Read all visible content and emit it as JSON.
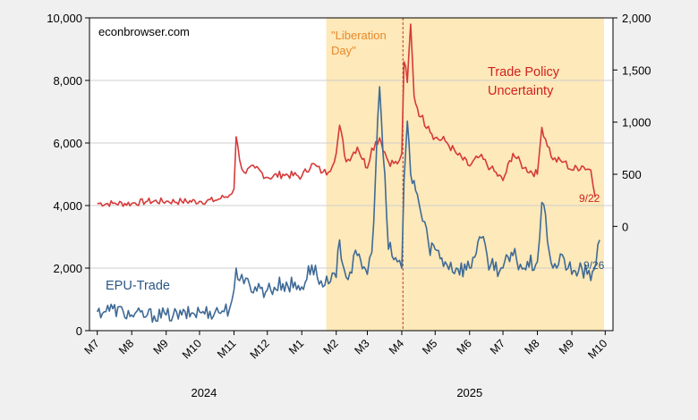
{
  "chart_data": {
    "type": "line",
    "source_label": "econbrowser.com",
    "x_labels": [
      "M7",
      "M8",
      "M9",
      "M10",
      "M11",
      "M12",
      "M1",
      "M2",
      "M3",
      "M4",
      "M5",
      "M6",
      "M7",
      "M8",
      "M9",
      "M10"
    ],
    "year_labels": [
      "2024",
      "2025"
    ],
    "left_axis": {
      "ticks": [
        "0",
        "2,000",
        "4,000",
        "6,000",
        "8,000",
        "10,000"
      ],
      "ylim": [
        0,
        10000
      ]
    },
    "right_axis": {
      "ticks": [
        "0",
        "500",
        "1,000",
        "1,500",
        "2,000"
      ],
      "ylim": [
        -1000,
        2000
      ]
    },
    "shaded_region": {
      "start": "2025-01-23",
      "end": "2025-09-30",
      "color": "#fde9b9"
    },
    "event_line": {
      "date": "2025-04-02",
      "color": "#c0392b"
    },
    "annotations": {
      "event_label": "\"Liberation\nDay\"",
      "tpu_label": "Trade Policy\nUncertainty",
      "epu_label": "EPU-Trade",
      "tpu_end": "9/22",
      "epu_end": "9/26"
    },
    "series": [
      {
        "name": "Trade Policy Uncertainty",
        "axis": "right",
        "color": "#d63a3a",
        "x": [
          "2024-07-01",
          "2024-07-15",
          "2024-08-01",
          "2024-08-15",
          "2024-09-01",
          "2024-09-15",
          "2024-10-01",
          "2024-10-15",
          "2024-10-28",
          "2024-11-01",
          "2024-11-03",
          "2024-11-06",
          "2024-11-10",
          "2024-11-20",
          "2024-12-01",
          "2024-12-15",
          "2025-01-01",
          "2025-01-10",
          "2025-01-20",
          "2025-01-25",
          "2025-02-01",
          "2025-02-04",
          "2025-02-10",
          "2025-02-20",
          "2025-03-01",
          "2025-03-05",
          "2025-03-12",
          "2025-03-20",
          "2025-03-28",
          "2025-04-01",
          "2025-04-03",
          "2025-04-06",
          "2025-04-09",
          "2025-04-12",
          "2025-04-18",
          "2025-04-25",
          "2025-05-01",
          "2025-05-10",
          "2025-05-20",
          "2025-06-01",
          "2025-06-10",
          "2025-06-20",
          "2025-07-01",
          "2025-07-10",
          "2025-07-20",
          "2025-08-01",
          "2025-08-05",
          "2025-08-15",
          "2025-08-25",
          "2025-09-01",
          "2025-09-10",
          "2025-09-18",
          "2025-09-22"
        ],
        "y": [
          220,
          220,
          220,
          240,
          240,
          240,
          240,
          250,
          300,
          360,
          860,
          640,
          520,
          560,
          470,
          500,
          480,
          600,
          520,
          520,
          700,
          970,
          620,
          760,
          560,
          750,
          850,
          620,
          600,
          700,
          1580,
          1380,
          1940,
          1250,
          1050,
          960,
          850,
          820,
          700,
          580,
          670,
          560,
          440,
          700,
          560,
          500,
          950,
          640,
          620,
          540,
          580,
          540,
          280
        ]
      },
      {
        "name": "EPU-Trade",
        "axis": "left",
        "color": "#3f6a96",
        "x": [
          "2024-07-01",
          "2024-07-15",
          "2024-08-01",
          "2024-08-15",
          "2024-09-01",
          "2024-09-15",
          "2024-10-01",
          "2024-10-15",
          "2024-10-28",
          "2024-11-01",
          "2024-11-03",
          "2024-11-06",
          "2024-11-10",
          "2024-11-20",
          "2024-12-01",
          "2024-12-15",
          "2025-01-01",
          "2025-01-10",
          "2025-01-20",
          "2025-01-25",
          "2025-02-01",
          "2025-02-04",
          "2025-02-10",
          "2025-02-20",
          "2025-03-01",
          "2025-03-05",
          "2025-03-12",
          "2025-03-20",
          "2025-03-28",
          "2025-04-01",
          "2025-04-03",
          "2025-04-06",
          "2025-04-09",
          "2025-04-12",
          "2025-04-18",
          "2025-04-25",
          "2025-05-01",
          "2025-05-10",
          "2025-05-20",
          "2025-06-01",
          "2025-06-10",
          "2025-06-20",
          "2025-07-01",
          "2025-07-10",
          "2025-07-20",
          "2025-08-01",
          "2025-08-05",
          "2025-08-15",
          "2025-08-25",
          "2025-09-01",
          "2025-09-10",
          "2025-09-18",
          "2025-09-26"
        ],
        "y": [
          600,
          700,
          500,
          500,
          500,
          500,
          600,
          600,
          700,
          1300,
          2000,
          1600,
          1500,
          1400,
          1300,
          1500,
          1400,
          2100,
          1400,
          1500,
          1700,
          2900,
          1700,
          2400,
          1800,
          2500,
          7800,
          2600,
          2200,
          2000,
          4800,
          6700,
          5000,
          4800,
          3800,
          2800,
          2600,
          2200,
          2000,
          2000,
          3000,
          2100,
          2000,
          2400,
          2000,
          2200,
          4100,
          2000,
          2300,
          1800,
          2000,
          1600,
          2900
        ]
      }
    ]
  }
}
